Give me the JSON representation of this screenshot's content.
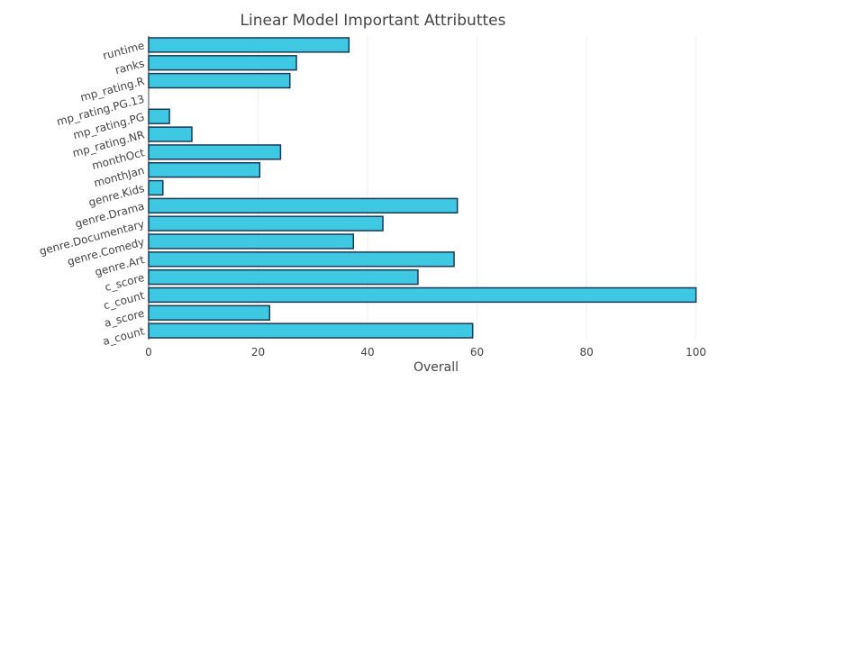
{
  "chart_data": {
    "type": "bar",
    "orientation": "horizontal",
    "title": "Linear Model Important Attributtes",
    "xlabel": "Overall",
    "ylabel": "",
    "xlim": [
      0,
      105
    ],
    "x_ticks": [
      0,
      20,
      40,
      60,
      80,
      100
    ],
    "grid": true,
    "legend": "none",
    "categories": [
      "runtime",
      "ranks",
      "mp_rating.R",
      "mp_rating.PG.13",
      "mp_rating.PG",
      "mp_rating.NR",
      "monthOct",
      "monthJan",
      "genre.Kids",
      "genre.Drama",
      "genre.Documentary",
      "genre.Comedy",
      "genre.Art",
      "c_score",
      "c_count",
      "a_score",
      "a_count"
    ],
    "values": [
      36.6,
      27,
      25.8,
      0,
      3.8,
      7.9,
      24.1,
      20.3,
      2.6,
      56.4,
      42.8,
      37.4,
      55.8,
      49.2,
      100,
      22.1,
      59.2
    ],
    "bar_color": "#3ec8e2",
    "bar_outline_color": "#1a3a5a",
    "grid_color": "#eeeeee",
    "text_color": "#444444"
  }
}
